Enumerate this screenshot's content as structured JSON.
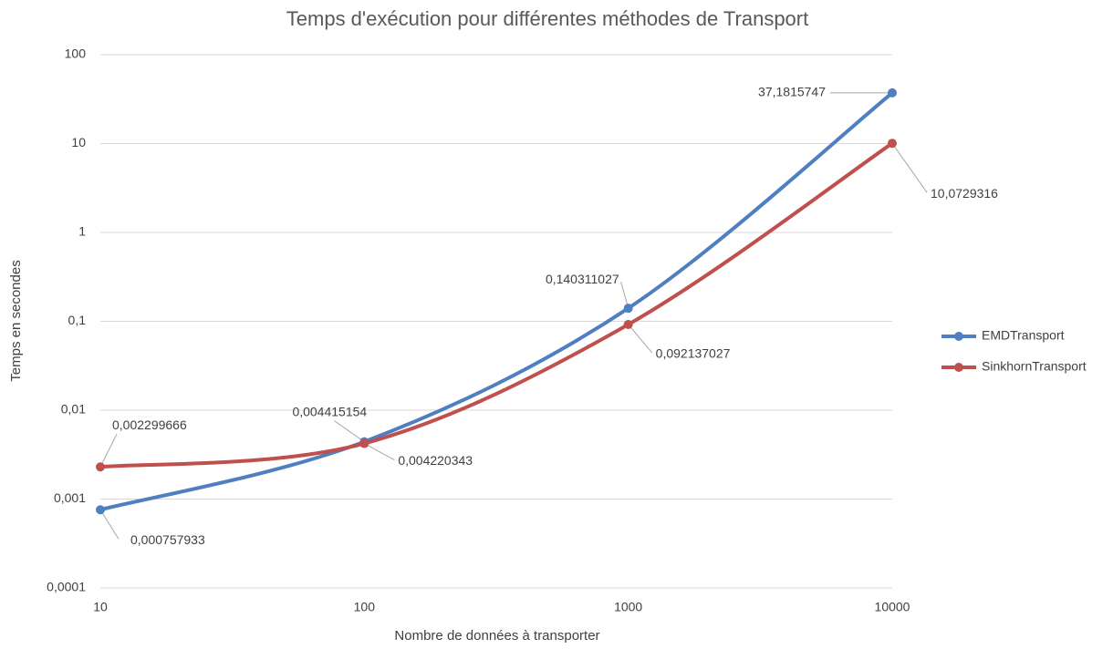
{
  "chart_data": {
    "type": "line",
    "title": "Temps d'exécution pour différentes méthodes de Transport",
    "x_label": "Nombre de données à transporter",
    "y_label": "Temps en secondes",
    "x": [
      10,
      100,
      1000,
      10000
    ],
    "xlim": [
      10,
      10000
    ],
    "xticks": [
      10,
      100,
      1000,
      10000
    ],
    "xscale": "log",
    "ylim": [
      0.0001,
      100
    ],
    "yticks": [
      {
        "value": 0.0001,
        "label": "0,0001"
      },
      {
        "value": 0.001,
        "label": "0,001"
      },
      {
        "value": 0.01,
        "label": "0,01"
      },
      {
        "value": 0.1,
        "label": "0,1"
      },
      1,
      10,
      100
    ],
    "yscale": "log",
    "grid": true,
    "legend": "right",
    "series": [
      {
        "name": "EMDTransport",
        "color": "#4f7fc0",
        "values": [
          0.000757933,
          0.004415154,
          0.140311027,
          37.1815747
        ],
        "value_labels": [
          "0,000757933",
          "0,004415154",
          "0,140311027",
          "37,1815747"
        ]
      },
      {
        "name": "SinkhornTransport",
        "color": "#c0504d",
        "values": [
          0.002299666,
          0.004220343,
          0.092137027,
          10.0729316
        ],
        "value_labels": [
          "0,002299666",
          "0,004220343",
          "0,092137027",
          "10,0729316"
        ]
      }
    ]
  }
}
